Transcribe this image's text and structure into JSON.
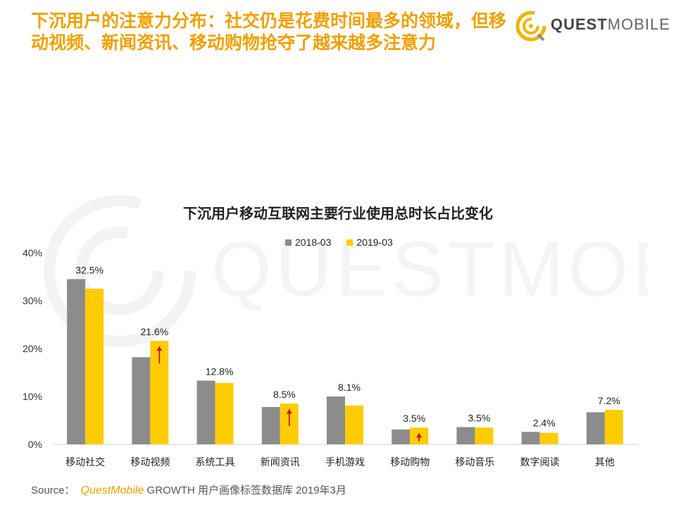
{
  "title": "下沉用户的注意力分布：社交仍是花费时间最多的领域，但移动视频、新闻资讯、移动购物抢夺了越来越多注意力",
  "logo": {
    "text_bold": "QUEST",
    "text_light": "MOBILE"
  },
  "colors": {
    "accent": "#f0a000",
    "series_2018": "#8c8c8c",
    "series_2019": "#ffcc00",
    "arrow": "#d40000"
  },
  "chart_data": {
    "type": "bar",
    "title": "下沉用户移动互联网主要行业使用总时长占比变化",
    "categories": [
      "移动社交",
      "移动视频",
      "系统工具",
      "新闻资讯",
      "手机游戏",
      "移动购物",
      "移动音乐",
      "数字阅读",
      "其他"
    ],
    "series": [
      {
        "name": "2018-03",
        "values": [
          34.5,
          18.2,
          13.3,
          7.8,
          10.0,
          3.1,
          3.6,
          2.6,
          6.7
        ]
      },
      {
        "name": "2019-03",
        "values": [
          32.5,
          21.6,
          12.8,
          8.5,
          8.1,
          3.5,
          3.5,
          2.4,
          7.2
        ]
      }
    ],
    "data_labels": [
      "32.5%",
      "21.6%",
      "12.8%",
      "8.5%",
      "8.1%",
      "3.5%",
      "3.5%",
      "2.4%",
      "7.2%"
    ],
    "increase_arrows": [
      "移动视频",
      "新闻资讯",
      "移动购物"
    ],
    "yticks": [
      "0%",
      "10%",
      "20%",
      "30%",
      "40%"
    ],
    "ylim": [
      0,
      40
    ],
    "legend_position": "top-center",
    "grid": false
  },
  "source": {
    "label": "Source：",
    "brand": "QuestMobile",
    "text": "GROWTH 用户画像标签数据库 2019年3月"
  }
}
